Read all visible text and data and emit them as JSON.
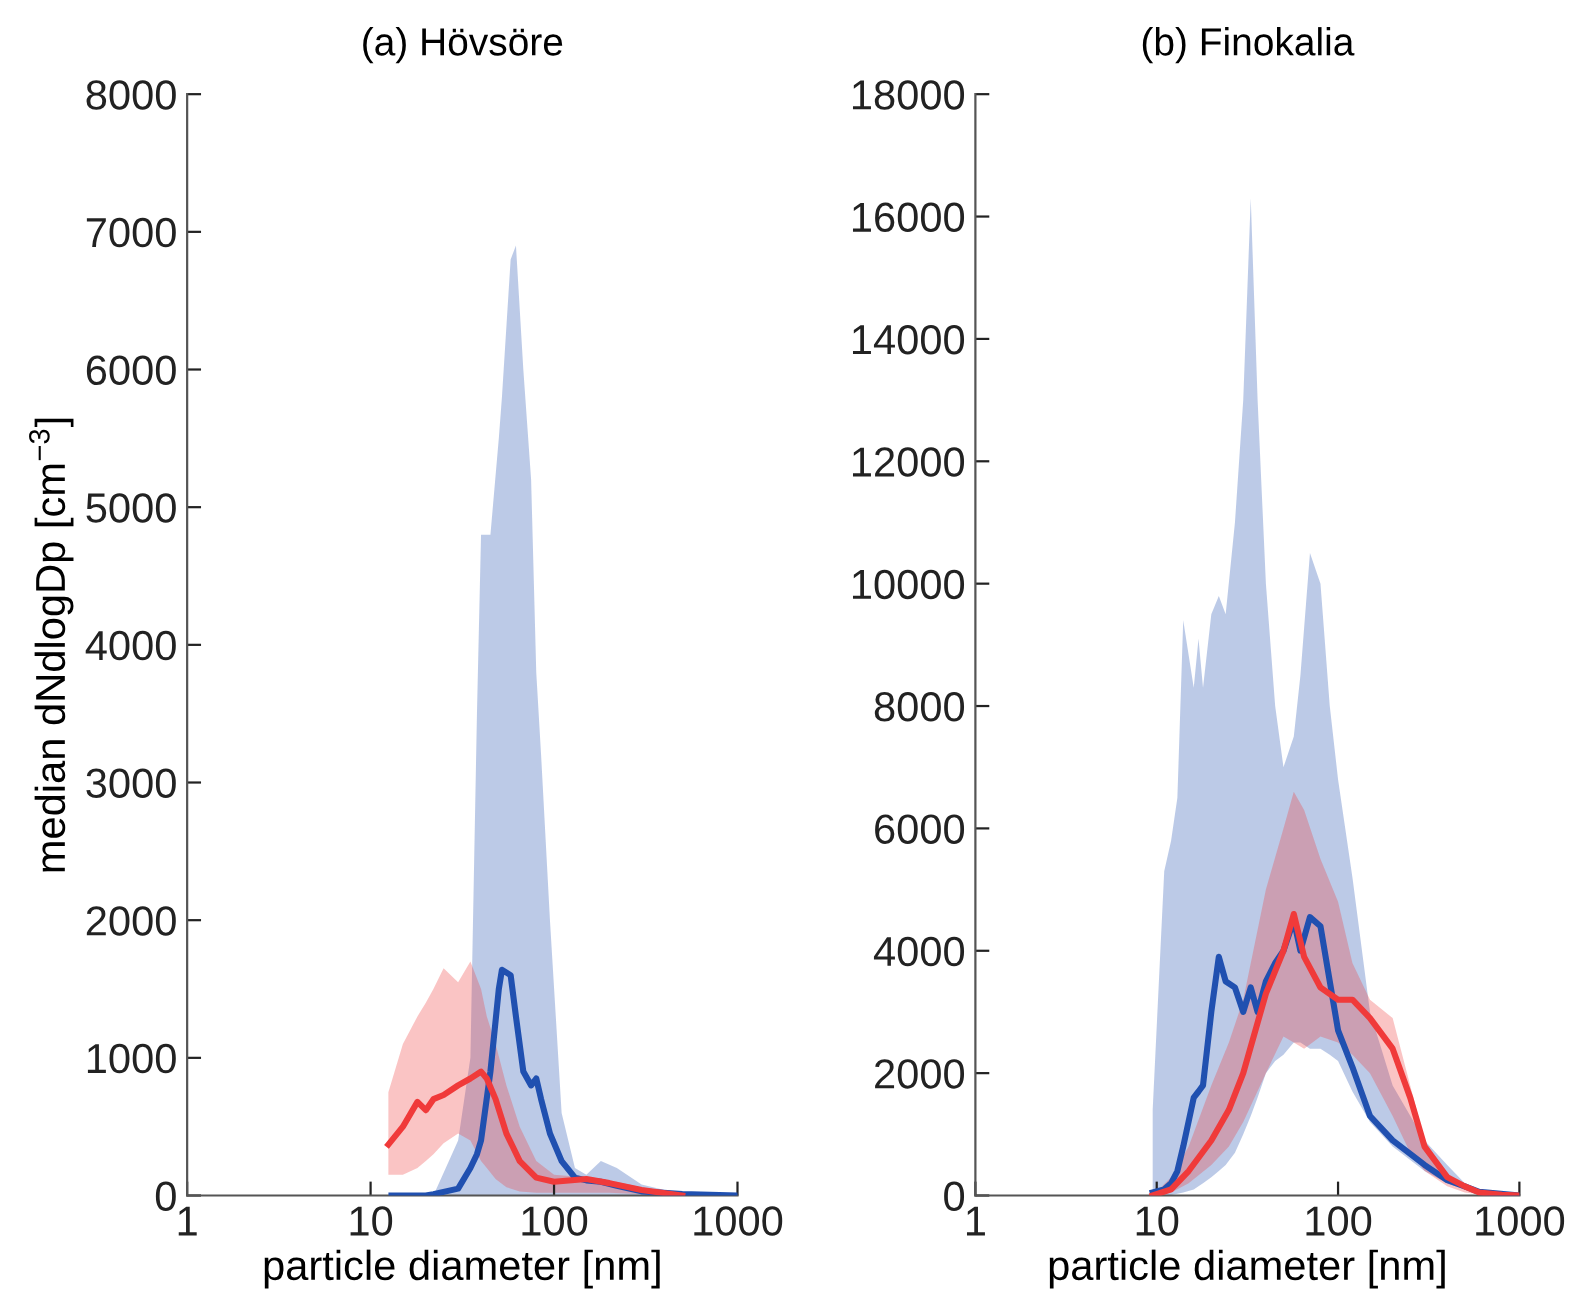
{
  "chart_data": [
    {
      "type": "line",
      "title": "(a) Hövsöre",
      "xlabel": "particle diameter [nm]",
      "ylabel": "median dNdlogDp [cm$^{−3}$]",
      "log": "x",
      "xlim": [
        1,
        1000
      ],
      "xticks": [
        1,
        10,
        100,
        1000
      ],
      "ylim": [
        0,
        8000
      ],
      "yticks": [
        0,
        1000,
        2000,
        3000,
        4000,
        5000,
        6000,
        7000,
        8000
      ],
      "grid": false,
      "legend": false,
      "marker": "none",
      "line_style": "solid",
      "series": [
        {
          "color": "#2050b0",
          "x": [
            13,
            20,
            22,
            30,
            35,
            38,
            40,
            45,
            50,
            52,
            58,
            62,
            68,
            75,
            80,
            85,
            95,
            110,
            130,
            150,
            180,
            220,
            300,
            500,
            1000
          ],
          "values": [
            0,
            0,
            10,
            50,
            200,
            300,
            400,
            900,
            1500,
            1640,
            1600,
            1300,
            900,
            800,
            850,
            700,
            450,
            250,
            130,
            110,
            100,
            70,
            30,
            10,
            0
          ],
          "upper": [
            0,
            0,
            0,
            400,
            1000,
            3500,
            4800,
            4800,
            5500,
            5800,
            6800,
            6900,
            6000,
            5200,
            3800,
            3200,
            2000,
            600,
            200,
            150,
            250,
            200,
            80,
            10,
            0
          ],
          "lower": [
            0,
            0,
            0,
            0,
            0,
            0,
            0,
            0,
            0,
            0,
            0,
            0,
            0,
            0,
            0,
            0,
            0,
            0,
            0,
            0,
            0,
            0,
            0,
            0,
            0
          ]
        },
        {
          "color": "#f03a3a",
          "x": [
            12.5,
            15,
            18,
            20,
            22,
            25,
            30,
            35,
            40,
            43,
            48,
            55,
            65,
            80,
            100,
            150,
            200,
            300,
            500
          ],
          "values": [
            370,
            500,
            680,
            620,
            700,
            730,
            800,
            850,
            900,
            850,
            700,
            450,
            250,
            130,
            100,
            120,
            90,
            40,
            0
          ],
          "upper": [
            750,
            1100,
            1300,
            1400,
            1500,
            1650,
            1550,
            1700,
            1500,
            1300,
            1100,
            800,
            500,
            250,
            150,
            130,
            110,
            60,
            0
          ],
          "lower": [
            150,
            150,
            200,
            250,
            300,
            380,
            450,
            400,
            250,
            200,
            120,
            60,
            30,
            20,
            20,
            20,
            20,
            10,
            0
          ]
        }
      ]
    },
    {
      "type": "line",
      "title": "(b) Finokalia",
      "xlabel": "particle diameter [nm]",
      "log": "x",
      "xlim": [
        1,
        1000
      ],
      "xticks": [
        1,
        10,
        100,
        1000
      ],
      "ylim": [
        0,
        18000
      ],
      "yticks": [
        0,
        2000,
        4000,
        6000,
        8000,
        10000,
        12000,
        14000,
        16000,
        18000
      ],
      "grid": false,
      "legend": false,
      "marker": "none",
      "line_style": "solid",
      "series": [
        {
          "color": "#2050b0",
          "x": [
            9.5,
            11,
            12,
            13,
            14,
            16,
            17,
            18,
            20,
            22,
            24,
            27,
            30,
            33,
            36,
            40,
            45,
            50,
            57,
            62,
            70,
            80,
            90,
            100,
            120,
            150,
            200,
            300,
            400,
            500,
            600,
            1000
          ],
          "values": [
            50,
            100,
            200,
            400,
            800,
            1600,
            1700,
            1800,
            3000,
            3900,
            3500,
            3400,
            3000,
            3400,
            3000,
            3500,
            3800,
            4000,
            4500,
            4000,
            4550,
            4400,
            3500,
            2700,
            2100,
            1300,
            900,
            500,
            250,
            150,
            60,
            0
          ],
          "upper": [
            1400,
            5300,
            5800,
            6500,
            9400,
            8300,
            9100,
            8300,
            9500,
            9800,
            9500,
            11000,
            13000,
            16300,
            13000,
            10000,
            8000,
            7000,
            7500,
            8500,
            10500,
            10000,
            8000,
            6800,
            5200,
            3000,
            1800,
            900,
            500,
            200,
            100,
            0
          ],
          "lower": [
            0,
            0,
            10,
            30,
            50,
            100,
            150,
            200,
            300,
            400,
            500,
            700,
            1000,
            1300,
            1600,
            2000,
            2200,
            2300,
            2500,
            2500,
            2400,
            2400,
            2300,
            2200,
            1700,
            1200,
            800,
            400,
            200,
            100,
            50,
            0
          ]
        },
        {
          "color": "#f03a3a",
          "x": [
            9.5,
            12,
            15,
            20,
            25,
            30,
            40,
            50,
            57,
            65,
            80,
            100,
            120,
            150,
            200,
            250,
            300,
            400,
            500,
            600,
            800,
            1000
          ],
          "values": [
            0,
            100,
            400,
            900,
            1400,
            2000,
            3300,
            4000,
            4600,
            3900,
            3400,
            3200,
            3200,
            2900,
            2400,
            1600,
            800,
            300,
            150,
            50,
            10,
            0
          ],
          "upper": [
            0,
            300,
            800,
            1800,
            2500,
            3200,
            5000,
            6000,
            6600,
            6300,
            5500,
            4800,
            3800,
            3200,
            2900,
            1800,
            900,
            350,
            150,
            60,
            10,
            0
          ],
          "lower": [
            0,
            50,
            200,
            500,
            800,
            1200,
            2000,
            2600,
            2500,
            2400,
            2600,
            2500,
            2300,
            2000,
            1300,
            700,
            400,
            150,
            50,
            20,
            0,
            0
          ]
        }
      ]
    }
  ]
}
